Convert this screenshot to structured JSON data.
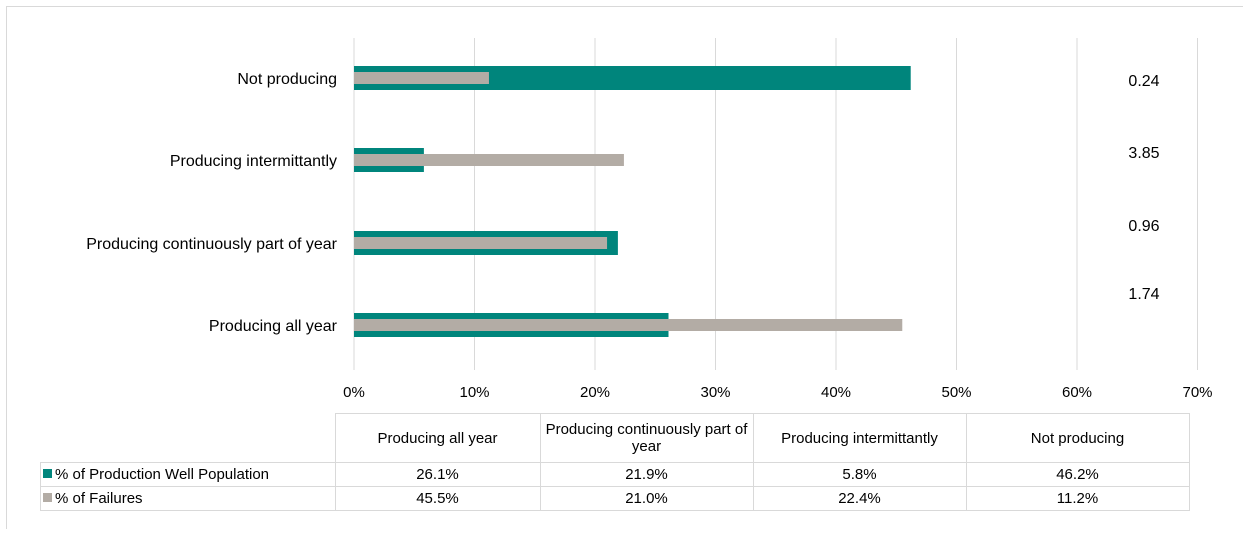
{
  "chart_data": {
    "type": "bar",
    "orientation": "horizontal",
    "categories": [
      "Producing all year",
      "Producing continuously part of year",
      "Producing intermittantly",
      "Not producing"
    ],
    "series": [
      {
        "name": "% of Production Well Population",
        "values": [
          26.1,
          21.9,
          5.8,
          46.2
        ],
        "labels": [
          "26.1%",
          "21.9%",
          "5.8%",
          "46.2%"
        ],
        "color": "#00857c"
      },
      {
        "name": "% of Failures",
        "values": [
          45.5,
          21.0,
          22.4,
          11.2
        ],
        "labels": [
          "45.5%",
          "21.0%",
          "22.4%",
          "11.2%"
        ],
        "color": "#b3aca5"
      }
    ],
    "ratios": [
      "1.74",
      "0.96",
      "3.85",
      "0.24"
    ],
    "x_ticks": [
      "0%",
      "10%",
      "20%",
      "30%",
      "40%",
      "50%",
      "60%",
      "70%"
    ],
    "xlim": [
      0,
      70
    ],
    "grid": true,
    "legend": "data-table-below"
  }
}
